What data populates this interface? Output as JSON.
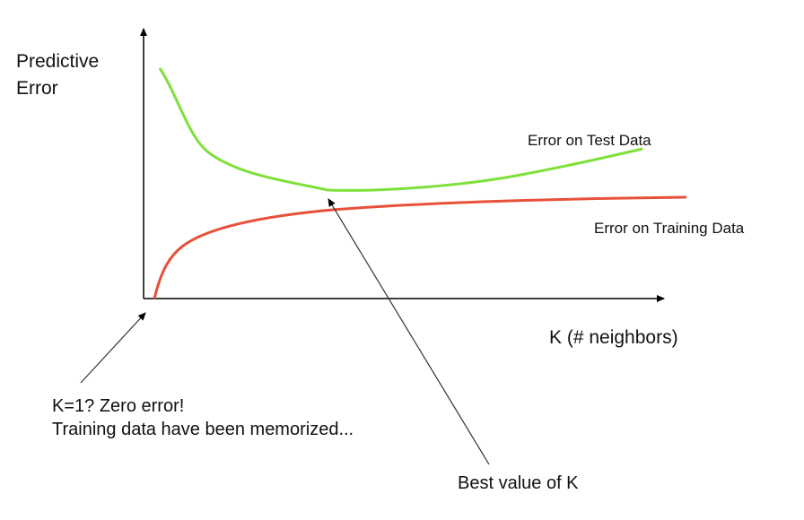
{
  "axes": {
    "y_label_line1": "Predictive",
    "y_label_line2": "Error",
    "x_label": "K (# neighbors)"
  },
  "curves": {
    "test": {
      "label": "Error on Test Data",
      "color": "#7ee03a"
    },
    "training": {
      "label": "Error on Training Data",
      "color": "#e8503a"
    }
  },
  "annotations": {
    "k1_line1": "K=1?  Zero error!",
    "k1_line2": "Training data have been memorized...",
    "best": "Best value of K"
  },
  "colors": {
    "axis": "#000000",
    "arrow": "#333333"
  }
}
